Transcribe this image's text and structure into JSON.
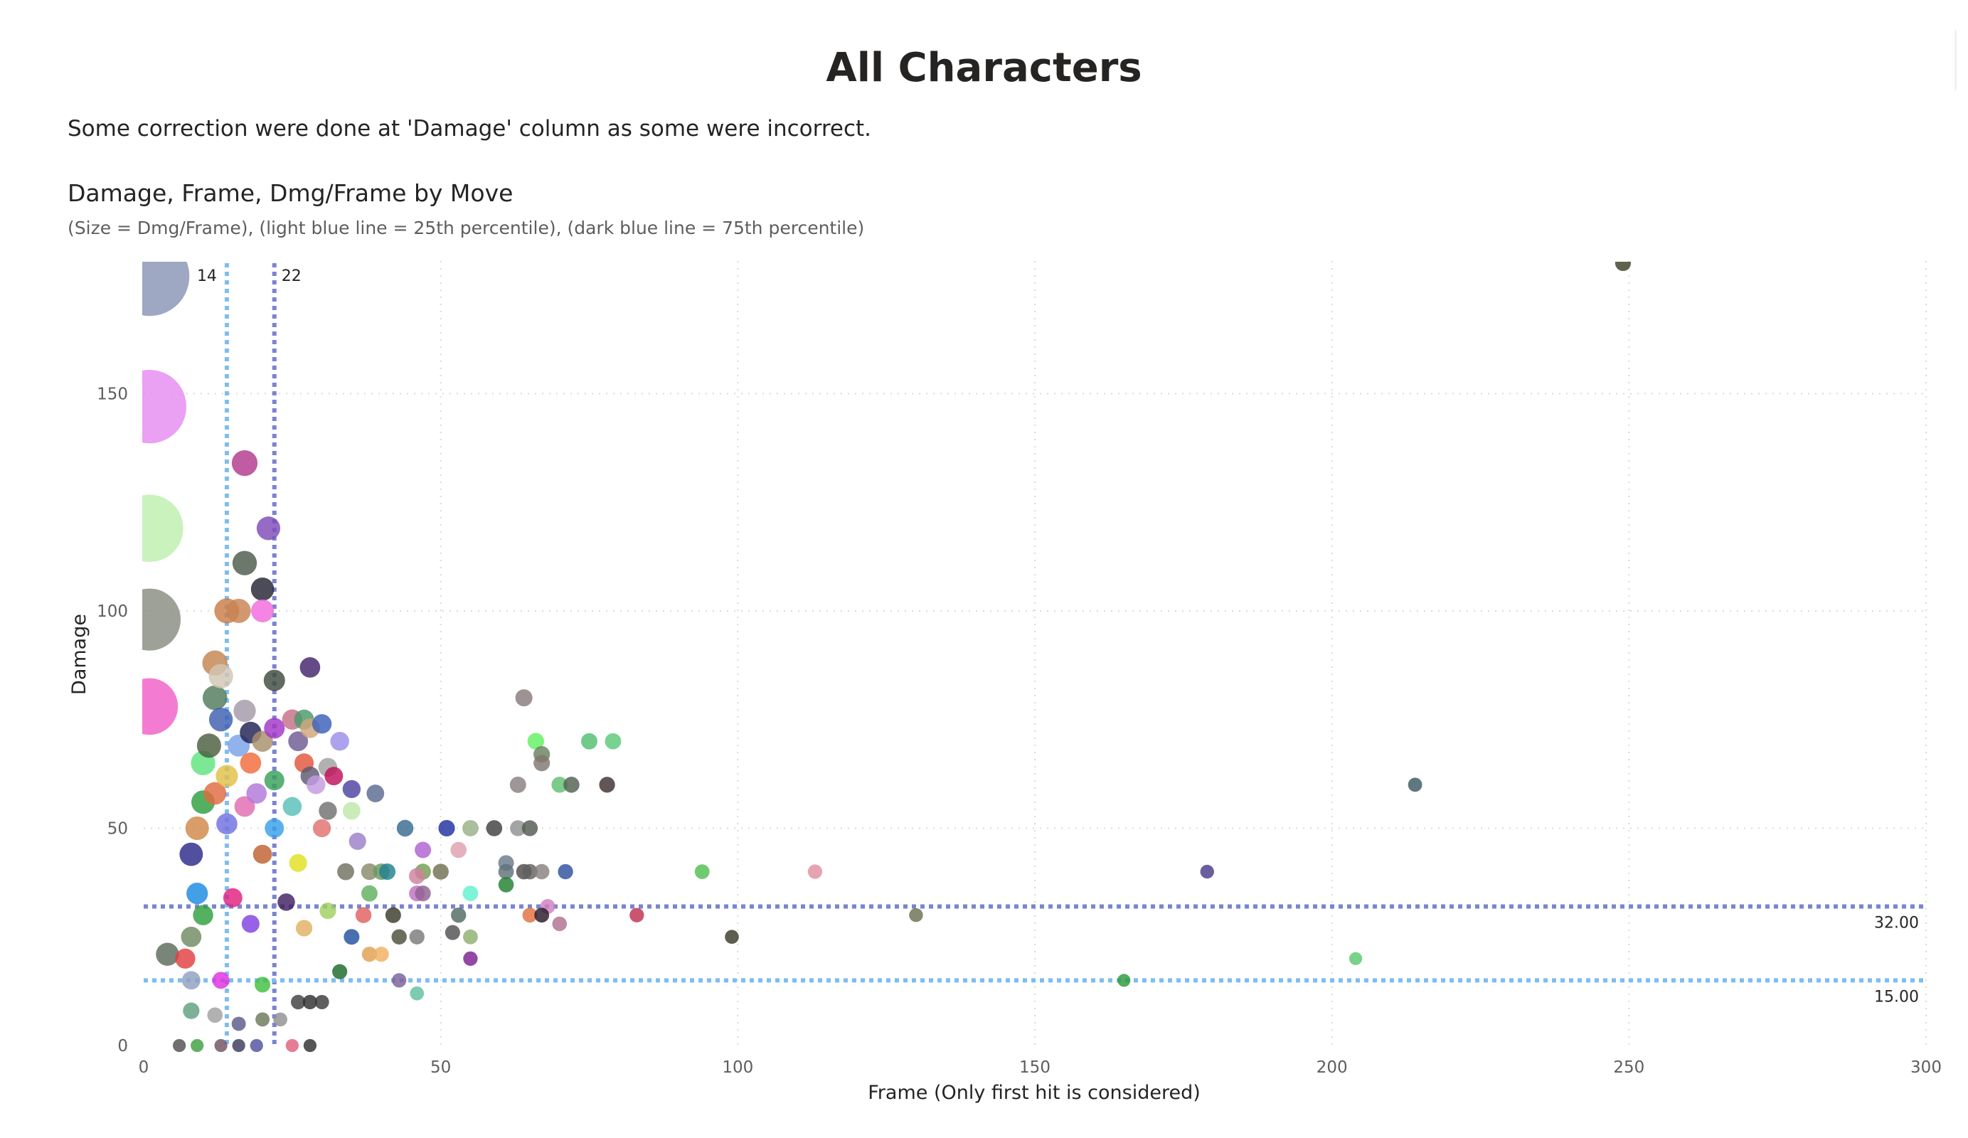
{
  "page": {
    "title": "All Characters",
    "note": "Some correction were done at 'Damage' column as some were incorrect."
  },
  "visual": {
    "title": "Damage, Frame, Dmg/Frame by Move",
    "subtitle": "(Size = Dmg/Frame), (light blue line = 25th percentile), (dark blue line = 75th percentile)"
  },
  "chart_data": {
    "type": "scatter",
    "xlabel": "Frame (Only first hit is considered)",
    "ylabel": "Damage",
    "xlim": [
      0,
      300
    ],
    "ylim": [
      0,
      180
    ],
    "x_ticks": [
      "0",
      "50",
      "100",
      "150",
      "200",
      "250",
      "300"
    ],
    "y_ticks": [
      "0",
      "50",
      "100",
      "150"
    ],
    "grid": "dotted",
    "reference_lines": {
      "x_25th": {
        "value": 14,
        "label": "14",
        "color": "#7fbcf2"
      },
      "x_75th": {
        "value": 22,
        "label": "22",
        "color": "#7b84cf"
      },
      "y_75th": {
        "value": 32,
        "label": "32.00",
        "color": "#7b84cf"
      },
      "y_25th": {
        "value": 15,
        "label": "15.00",
        "color": "#7fbcf2"
      }
    },
    "points": [
      {
        "x": 1,
        "y": 177,
        "size": 177,
        "color": "#8995b4"
      },
      {
        "x": 1,
        "y": 147,
        "size": 147,
        "color": "#e58bf0"
      },
      {
        "x": 1,
        "y": 119,
        "size": 119,
        "color": "#bdefae"
      },
      {
        "x": 1,
        "y": 98,
        "size": 98,
        "color": "#878c80"
      },
      {
        "x": 1,
        "y": 78,
        "size": 78,
        "color": "#f05fc8"
      },
      {
        "x": 17,
        "y": 134,
        "size": 7.9,
        "color": "#b2388e"
      },
      {
        "x": 21,
        "y": 119,
        "size": 5.7,
        "color": "#7e4bb8"
      },
      {
        "x": 17,
        "y": 111,
        "size": 6.5,
        "color": "#4c5a4c"
      },
      {
        "x": 20,
        "y": 105,
        "size": 5.3,
        "color": "#252434"
      },
      {
        "x": 14,
        "y": 100,
        "size": 7.1,
        "color": "#c97d47"
      },
      {
        "x": 16,
        "y": 100,
        "size": 6.3,
        "color": "#c88352"
      },
      {
        "x": 20,
        "y": 100,
        "size": 5,
        "color": "#f26ade"
      },
      {
        "x": 12,
        "y": 88,
        "size": 7.3,
        "color": "#c3844f"
      },
      {
        "x": 28,
        "y": 87,
        "size": 3.1,
        "color": "#42236a"
      },
      {
        "x": 13,
        "y": 85,
        "size": 6.5,
        "color": "#d2c6b2"
      },
      {
        "x": 22,
        "y": 84,
        "size": 3.8,
        "color": "#404a3e"
      },
      {
        "x": 12,
        "y": 80,
        "size": 6.7,
        "color": "#4f7a5a"
      },
      {
        "x": 17,
        "y": 77,
        "size": 4.5,
        "color": "#a398a9"
      },
      {
        "x": 13,
        "y": 75,
        "size": 5.8,
        "color": "#3d5fb0"
      },
      {
        "x": 18,
        "y": 72,
        "size": 4,
        "color": "#1e2152"
      },
      {
        "x": 22,
        "y": 73,
        "size": 3.3,
        "color": "#a235c8"
      },
      {
        "x": 25,
        "y": 75,
        "size": 3,
        "color": "#c66f86"
      },
      {
        "x": 27,
        "y": 75,
        "size": 2.8,
        "color": "#4a9a6a"
      },
      {
        "x": 30,
        "y": 74,
        "size": 2.5,
        "color": "#3b5fb8"
      },
      {
        "x": 28,
        "y": 73,
        "size": 2.6,
        "color": "#d2a57a"
      },
      {
        "x": 11,
        "y": 69,
        "size": 6.3,
        "color": "#4b5e40"
      },
      {
        "x": 16,
        "y": 69,
        "size": 4.3,
        "color": "#7aa1e8"
      },
      {
        "x": 20,
        "y": 70,
        "size": 3.5,
        "color": "#a98f6d"
      },
      {
        "x": 26,
        "y": 70,
        "size": 2.7,
        "color": "#6d5a92"
      },
      {
        "x": 33,
        "y": 70,
        "size": 2.1,
        "color": "#9b8ee8"
      },
      {
        "x": 10,
        "y": 65,
        "size": 6.5,
        "color": "#5fe37e"
      },
      {
        "x": 18,
        "y": 65,
        "size": 3.6,
        "color": "#f26a3a"
      },
      {
        "x": 27,
        "y": 65,
        "size": 2.4,
        "color": "#e0563a"
      },
      {
        "x": 31,
        "y": 64,
        "size": 2.1,
        "color": "#a0a0a0"
      },
      {
        "x": 14,
        "y": 62,
        "size": 4.4,
        "color": "#e0c045"
      },
      {
        "x": 22,
        "y": 61,
        "size": 2.8,
        "color": "#38a058"
      },
      {
        "x": 28,
        "y": 62,
        "size": 2.2,
        "color": "#5a5a70"
      },
      {
        "x": 32,
        "y": 62,
        "size": 1.9,
        "color": "#c0105a"
      },
      {
        "x": 12,
        "y": 58,
        "size": 4.8,
        "color": "#e06a40"
      },
      {
        "x": 19,
        "y": 58,
        "size": 3.1,
        "color": "#b078d8"
      },
      {
        "x": 29,
        "y": 60,
        "size": 2.1,
        "color": "#c39ae0"
      },
      {
        "x": 35,
        "y": 59,
        "size": 1.7,
        "color": "#4d42a0"
      },
      {
        "x": 39,
        "y": 58,
        "size": 1.5,
        "color": "#5a6a90"
      },
      {
        "x": 10,
        "y": 56,
        "size": 5.6,
        "color": "#2e9f3e"
      },
      {
        "x": 17,
        "y": 55,
        "size": 3.2,
        "color": "#e06ab0"
      },
      {
        "x": 25,
        "y": 55,
        "size": 2.2,
        "color": "#58c0b8"
      },
      {
        "x": 31,
        "y": 54,
        "size": 1.7,
        "color": "#707070"
      },
      {
        "x": 35,
        "y": 54,
        "size": 1.5,
        "color": "#bde8a8"
      },
      {
        "x": 9,
        "y": 50,
        "size": 5.6,
        "color": "#d08848"
      },
      {
        "x": 14,
        "y": 51,
        "size": 3.6,
        "color": "#7070e0"
      },
      {
        "x": 22,
        "y": 50,
        "size": 2.3,
        "color": "#38a0e8"
      },
      {
        "x": 30,
        "y": 50,
        "size": 1.7,
        "color": "#e07070"
      },
      {
        "x": 36,
        "y": 47,
        "size": 1.3,
        "color": "#9a80c8"
      },
      {
        "x": 44,
        "y": 50,
        "size": 1.1,
        "color": "#386a90"
      },
      {
        "x": 51,
        "y": 50,
        "size": 1,
        "color": "#2030a0"
      },
      {
        "x": 55,
        "y": 50,
        "size": 0.9,
        "color": "#98b088"
      },
      {
        "x": 59,
        "y": 50,
        "size": 0.85,
        "color": "#404040"
      },
      {
        "x": 63,
        "y": 50,
        "size": 0.8,
        "color": "#909090"
      },
      {
        "x": 65,
        "y": 50,
        "size": 0.77,
        "color": "#505a50"
      },
      {
        "x": 64,
        "y": 80,
        "size": 1.25,
        "color": "#8a7a7a"
      },
      {
        "x": 66,
        "y": 70,
        "size": 1.06,
        "color": "#62f062"
      },
      {
        "x": 75,
        "y": 70,
        "size": 0.93,
        "color": "#50c070"
      },
      {
        "x": 79,
        "y": 70,
        "size": 0.89,
        "color": "#5ac878"
      },
      {
        "x": 67,
        "y": 67,
        "size": 1,
        "color": "#6a8060"
      },
      {
        "x": 67,
        "y": 65,
        "size": 0.97,
        "color": "#807870"
      },
      {
        "x": 63,
        "y": 60,
        "size": 0.95,
        "color": "#8a8080"
      },
      {
        "x": 70,
        "y": 60,
        "size": 0.86,
        "color": "#60c070"
      },
      {
        "x": 72,
        "y": 60,
        "size": 0.83,
        "color": "#506050"
      },
      {
        "x": 78,
        "y": 60,
        "size": 0.77,
        "color": "#403030"
      },
      {
        "x": 47,
        "y": 45,
        "size": 0.96,
        "color": "#b060d0"
      },
      {
        "x": 53,
        "y": 45,
        "size": 0.85,
        "color": "#e0a0b0"
      },
      {
        "x": 61,
        "y": 42,
        "size": 0.7,
        "color": "#6a7a8a"
      },
      {
        "x": 8,
        "y": 44,
        "size": 5.5,
        "color": "#2a2a8a"
      },
      {
        "x": 20,
        "y": 44,
        "size": 2.2,
        "color": "#c06030"
      },
      {
        "x": 26,
        "y": 42,
        "size": 1.6,
        "color": "#e0e020"
      },
      {
        "x": 34,
        "y": 40,
        "size": 1.2,
        "color": "#707060"
      },
      {
        "x": 38,
        "y": 40,
        "size": 1.05,
        "color": "#8a8a6a"
      },
      {
        "x": 40,
        "y": 40,
        "size": 1,
        "color": "#6a9a60"
      },
      {
        "x": 41,
        "y": 40,
        "size": 0.98,
        "color": "#208090"
      },
      {
        "x": 47,
        "y": 40,
        "size": 0.85,
        "color": "#70a050"
      },
      {
        "x": 50,
        "y": 40,
        "size": 0.8,
        "color": "#707050"
      },
      {
        "x": 61,
        "y": 40,
        "size": 0.66,
        "color": "#60707a"
      },
      {
        "x": 64,
        "y": 40,
        "size": 0.63,
        "color": "#504a4a"
      },
      {
        "x": 65,
        "y": 40,
        "size": 0.62,
        "color": "#606060"
      },
      {
        "x": 67,
        "y": 40,
        "size": 0.6,
        "color": "#888080"
      },
      {
        "x": 71,
        "y": 40,
        "size": 0.56,
        "color": "#3050a0"
      },
      {
        "x": 94,
        "y": 40,
        "size": 0.43,
        "color": "#50c050"
      },
      {
        "x": 113,
        "y": 40,
        "size": 0.35,
        "color": "#e090a0"
      },
      {
        "x": 179,
        "y": 40,
        "size": 0.22,
        "color": "#4a3a8a"
      },
      {
        "x": 46,
        "y": 39,
        "size": 0.85,
        "color": "#d080a0"
      },
      {
        "x": 46,
        "y": 35,
        "size": 0.76,
        "color": "#c070c0"
      },
      {
        "x": 47,
        "y": 35,
        "size": 0.74,
        "color": "#906090"
      },
      {
        "x": 55,
        "y": 35,
        "size": 0.64,
        "color": "#60f0d0"
      },
      {
        "x": 61,
        "y": 37,
        "size": 0.61,
        "color": "#208030"
      },
      {
        "x": 38,
        "y": 35,
        "size": 0.92,
        "color": "#60b060"
      },
      {
        "x": 9,
        "y": 35,
        "size": 3.9,
        "color": "#1a8ae0"
      },
      {
        "x": 15,
        "y": 34,
        "size": 2.3,
        "color": "#e02080"
      },
      {
        "x": 24,
        "y": 33,
        "size": 1.4,
        "color": "#402060"
      },
      {
        "x": 31,
        "y": 31,
        "size": 1,
        "color": "#a0d060"
      },
      {
        "x": 37,
        "y": 30,
        "size": 0.81,
        "color": "#e06060"
      },
      {
        "x": 42,
        "y": 30,
        "size": 0.71,
        "color": "#3a3a2a"
      },
      {
        "x": 53,
        "y": 30,
        "size": 0.57,
        "color": "#506a60"
      },
      {
        "x": 65,
        "y": 30,
        "size": 0.46,
        "color": "#e07040"
      },
      {
        "x": 67,
        "y": 30,
        "size": 0.45,
        "color": "#2a1a2a"
      },
      {
        "x": 68,
        "y": 32,
        "size": 0.47,
        "color": "#d080c0"
      },
      {
        "x": 70,
        "y": 28,
        "size": 0.4,
        "color": "#b07090"
      },
      {
        "x": 83,
        "y": 30,
        "size": 0.36,
        "color": "#c03050"
      },
      {
        "x": 130,
        "y": 30,
        "size": 0.23,
        "color": "#6a7050"
      },
      {
        "x": 10,
        "y": 30,
        "size": 3,
        "color": "#30a040"
      },
      {
        "x": 18,
        "y": 28,
        "size": 1.6,
        "color": "#8040e0"
      },
      {
        "x": 27,
        "y": 27,
        "size": 1,
        "color": "#e0b060"
      },
      {
        "x": 35,
        "y": 25,
        "size": 0.71,
        "color": "#2050a0"
      },
      {
        "x": 43,
        "y": 25,
        "size": 0.58,
        "color": "#4a503a"
      },
      {
        "x": 46,
        "y": 25,
        "size": 0.54,
        "color": "#7a7a7a"
      },
      {
        "x": 52,
        "y": 26,
        "size": 0.5,
        "color": "#505050"
      },
      {
        "x": 55,
        "y": 25,
        "size": 0.45,
        "color": "#90b070"
      },
      {
        "x": 99,
        "y": 25,
        "size": 0.25,
        "color": "#3a3a2a"
      },
      {
        "x": 4,
        "y": 21,
        "size": 5.2,
        "color": "#5a6a5a"
      },
      {
        "x": 7,
        "y": 20,
        "size": 2.9,
        "color": "#e04040"
      },
      {
        "x": 8,
        "y": 25,
        "size": 3.1,
        "color": "#708a60"
      },
      {
        "x": 38,
        "y": 21,
        "size": 0.55,
        "color": "#e0a050"
      },
      {
        "x": 40,
        "y": 21,
        "size": 0.53,
        "color": "#f0b060"
      },
      {
        "x": 55,
        "y": 20,
        "size": 0.36,
        "color": "#7a2090"
      },
      {
        "x": 204,
        "y": 20,
        "size": 0.1,
        "color": "#5ac870"
      },
      {
        "x": 8,
        "y": 15,
        "size": 1.9,
        "color": "#90a0c0"
      },
      {
        "x": 13,
        "y": 15,
        "size": 1.2,
        "color": "#e030e0"
      },
      {
        "x": 20,
        "y": 14,
        "size": 0.7,
        "color": "#40c040"
      },
      {
        "x": 33,
        "y": 17,
        "size": 0.52,
        "color": "#1a6a2a"
      },
      {
        "x": 43,
        "y": 15,
        "size": 0.35,
        "color": "#7a609a"
      },
      {
        "x": 165,
        "y": 15,
        "size": 0.09,
        "color": "#2a9a3a"
      },
      {
        "x": 46,
        "y": 12,
        "size": 0.26,
        "color": "#60c0a0"
      },
      {
        "x": 8,
        "y": 8,
        "size": 1,
        "color": "#60a080"
      },
      {
        "x": 12,
        "y": 7,
        "size": 0.6,
        "color": "#a0a0a0"
      },
      {
        "x": 16,
        "y": 5,
        "size": 0.3,
        "color": "#5a5a8a"
      },
      {
        "x": 20,
        "y": 6,
        "size": 0.3,
        "color": "#6a7a5a"
      },
      {
        "x": 23,
        "y": 6,
        "size": 0.26,
        "color": "#909090"
      },
      {
        "x": 26,
        "y": 10,
        "size": 0.38,
        "color": "#404040"
      },
      {
        "x": 28,
        "y": 10,
        "size": 0.36,
        "color": "#303030"
      },
      {
        "x": 30,
        "y": 10,
        "size": 0.33,
        "color": "#3a3a3a"
      },
      {
        "x": 6,
        "y": 0,
        "size": 0.1,
        "color": "#505050"
      },
      {
        "x": 9,
        "y": 0,
        "size": 0.1,
        "color": "#40a040"
      },
      {
        "x": 13,
        "y": 0,
        "size": 0.1,
        "color": "#705060"
      },
      {
        "x": 16,
        "y": 0,
        "size": 0.1,
        "color": "#3a3a5a"
      },
      {
        "x": 19,
        "y": 0,
        "size": 0.1,
        "color": "#5050a0"
      },
      {
        "x": 25,
        "y": 0,
        "size": 0.1,
        "color": "#e06080"
      },
      {
        "x": 28,
        "y": 0,
        "size": 0.1,
        "color": "#303030"
      },
      {
        "x": 214,
        "y": 60,
        "size": 0.28,
        "color": "#3a5a60"
      },
      {
        "x": 249,
        "y": 180,
        "size": 0.72,
        "color": "#3a4028"
      }
    ]
  }
}
